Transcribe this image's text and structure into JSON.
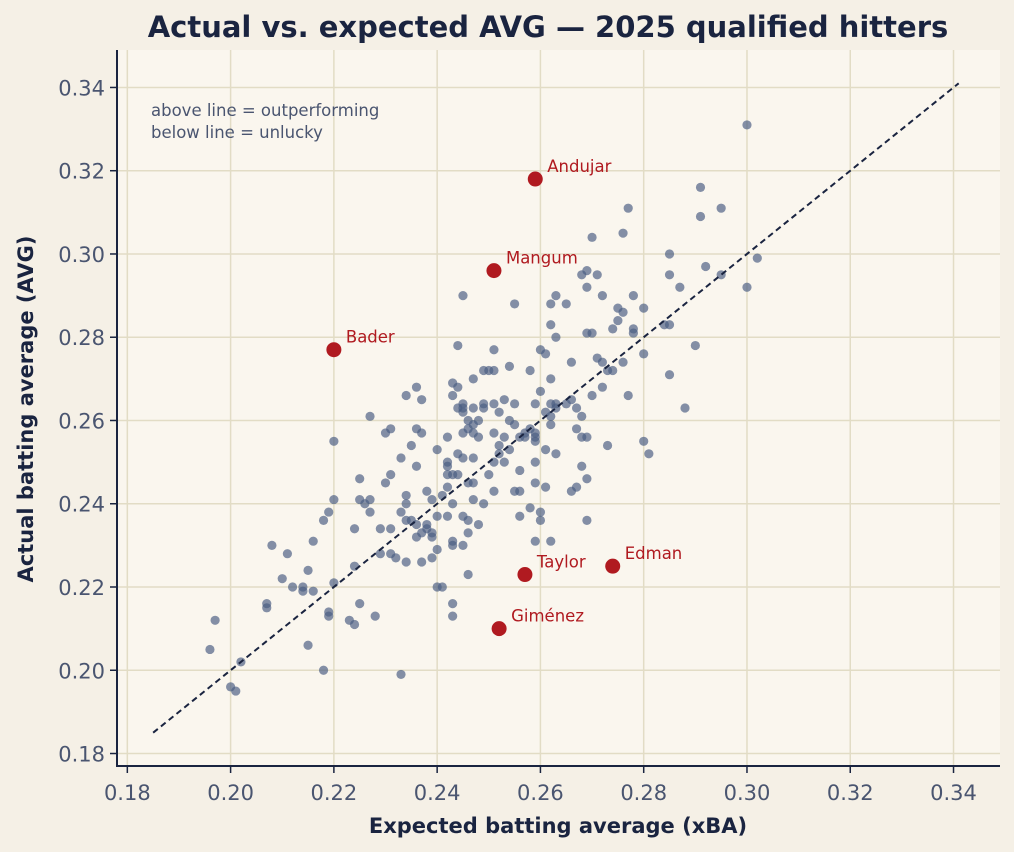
{
  "chart_data": {
    "type": "scatter",
    "title": "Actual vs. expected AVG — 2025 qualified hitters",
    "xlabel": "Expected batting average (xBA)",
    "ylabel": "Actual batting average (AVG)",
    "xlim": [
      0.178,
      0.349
    ],
    "ylim": [
      0.177,
      0.349
    ],
    "xticks": [
      "0.18",
      "0.20",
      "0.22",
      "0.24",
      "0.26",
      "0.28",
      "0.30",
      "0.32",
      "0.34"
    ],
    "yticks": [
      "0.18",
      "0.20",
      "0.22",
      "0.24",
      "0.26",
      "0.28",
      "0.30",
      "0.32",
      "0.34"
    ],
    "grid": true,
    "annotation": [
      "above line = outperforming",
      "below line = unlucky"
    ],
    "reference_line": {
      "style": "dashed",
      "x": [
        0.185,
        0.341
      ],
      "y": [
        0.185,
        0.341
      ]
    },
    "colors": {
      "points": "#4a5d82",
      "highlight": "#b01a20",
      "line": "#1a2440",
      "grid": "#e2dcc5",
      "plot_bg": "#faf6ee",
      "page_bg": "#f5f0e6"
    },
    "highlighted": [
      {
        "name": "Andujar",
        "x": 0.259,
        "y": 0.318
      },
      {
        "name": "Mangum",
        "x": 0.251,
        "y": 0.296
      },
      {
        "name": "Bader",
        "x": 0.22,
        "y": 0.277
      },
      {
        "name": "Taylor",
        "x": 0.257,
        "y": 0.223
      },
      {
        "name": "Edman",
        "x": 0.274,
        "y": 0.225
      },
      {
        "name": "Giménez",
        "x": 0.252,
        "y": 0.21
      }
    ],
    "points": [
      [
        0.196,
        0.205
      ],
      [
        0.197,
        0.212
      ],
      [
        0.2,
        0.196
      ],
      [
        0.201,
        0.195
      ],
      [
        0.202,
        0.202
      ],
      [
        0.207,
        0.215
      ],
      [
        0.207,
        0.216
      ],
      [
        0.208,
        0.23
      ],
      [
        0.21,
        0.222
      ],
      [
        0.211,
        0.228
      ],
      [
        0.212,
        0.22
      ],
      [
        0.214,
        0.22
      ],
      [
        0.214,
        0.219
      ],
      [
        0.215,
        0.224
      ],
      [
        0.215,
        0.206
      ],
      [
        0.216,
        0.219
      ],
      [
        0.216,
        0.231
      ],
      [
        0.218,
        0.236
      ],
      [
        0.218,
        0.2
      ],
      [
        0.219,
        0.238
      ],
      [
        0.219,
        0.214
      ],
      [
        0.219,
        0.213
      ],
      [
        0.22,
        0.241
      ],
      [
        0.22,
        0.221
      ],
      [
        0.22,
        0.255
      ],
      [
        0.223,
        0.212
      ],
      [
        0.224,
        0.211
      ],
      [
        0.224,
        0.234
      ],
      [
        0.224,
        0.225
      ],
      [
        0.225,
        0.246
      ],
      [
        0.225,
        0.241
      ],
      [
        0.225,
        0.216
      ],
      [
        0.226,
        0.24
      ],
      [
        0.227,
        0.261
      ],
      [
        0.227,
        0.241
      ],
      [
        0.227,
        0.238
      ],
      [
        0.228,
        0.213
      ],
      [
        0.229,
        0.234
      ],
      [
        0.229,
        0.228
      ],
      [
        0.23,
        0.245
      ],
      [
        0.23,
        0.257
      ],
      [
        0.231,
        0.258
      ],
      [
        0.231,
        0.247
      ],
      [
        0.231,
        0.234
      ],
      [
        0.231,
        0.228
      ],
      [
        0.232,
        0.227
      ],
      [
        0.233,
        0.251
      ],
      [
        0.233,
        0.238
      ],
      [
        0.233,
        0.199
      ],
      [
        0.234,
        0.266
      ],
      [
        0.234,
        0.242
      ],
      [
        0.234,
        0.24
      ],
      [
        0.234,
        0.236
      ],
      [
        0.234,
        0.226
      ],
      [
        0.235,
        0.254
      ],
      [
        0.235,
        0.236
      ],
      [
        0.236,
        0.268
      ],
      [
        0.236,
        0.258
      ],
      [
        0.236,
        0.249
      ],
      [
        0.236,
        0.235
      ],
      [
        0.236,
        0.232
      ],
      [
        0.237,
        0.265
      ],
      [
        0.237,
        0.257
      ],
      [
        0.237,
        0.233
      ],
      [
        0.237,
        0.226
      ],
      [
        0.238,
        0.243
      ],
      [
        0.238,
        0.235
      ],
      [
        0.238,
        0.234
      ],
      [
        0.239,
        0.241
      ],
      [
        0.239,
        0.233
      ],
      [
        0.239,
        0.227
      ],
      [
        0.239,
        0.232
      ],
      [
        0.24,
        0.253
      ],
      [
        0.24,
        0.237
      ],
      [
        0.24,
        0.229
      ],
      [
        0.24,
        0.22
      ],
      [
        0.241,
        0.242
      ],
      [
        0.241,
        0.22
      ],
      [
        0.242,
        0.256
      ],
      [
        0.242,
        0.25
      ],
      [
        0.242,
        0.249
      ],
      [
        0.242,
        0.247
      ],
      [
        0.242,
        0.244
      ],
      [
        0.242,
        0.237
      ],
      [
        0.243,
        0.269
      ],
      [
        0.243,
        0.266
      ],
      [
        0.243,
        0.247
      ],
      [
        0.243,
        0.24
      ],
      [
        0.243,
        0.231
      ],
      [
        0.243,
        0.23
      ],
      [
        0.243,
        0.216
      ],
      [
        0.243,
        0.213
      ],
      [
        0.244,
        0.278
      ],
      [
        0.244,
        0.268
      ],
      [
        0.244,
        0.263
      ],
      [
        0.244,
        0.252
      ],
      [
        0.244,
        0.247
      ],
      [
        0.245,
        0.29
      ],
      [
        0.245,
        0.264
      ],
      [
        0.245,
        0.263
      ],
      [
        0.245,
        0.262
      ],
      [
        0.245,
        0.257
      ],
      [
        0.245,
        0.251
      ],
      [
        0.245,
        0.237
      ],
      [
        0.245,
        0.23
      ],
      [
        0.246,
        0.26
      ],
      [
        0.246,
        0.258
      ],
      [
        0.246,
        0.245
      ],
      [
        0.246,
        0.236
      ],
      [
        0.246,
        0.233
      ],
      [
        0.246,
        0.223
      ],
      [
        0.247,
        0.27
      ],
      [
        0.247,
        0.263
      ],
      [
        0.247,
        0.259
      ],
      [
        0.247,
        0.257
      ],
      [
        0.247,
        0.251
      ],
      [
        0.247,
        0.245
      ],
      [
        0.247,
        0.241
      ],
      [
        0.248,
        0.26
      ],
      [
        0.248,
        0.256
      ],
      [
        0.248,
        0.235
      ],
      [
        0.249,
        0.272
      ],
      [
        0.249,
        0.264
      ],
      [
        0.249,
        0.263
      ],
      [
        0.249,
        0.24
      ],
      [
        0.25,
        0.272
      ],
      [
        0.25,
        0.247
      ],
      [
        0.251,
        0.277
      ],
      [
        0.251,
        0.272
      ],
      [
        0.251,
        0.264
      ],
      [
        0.251,
        0.257
      ],
      [
        0.251,
        0.25
      ],
      [
        0.251,
        0.243
      ],
      [
        0.252,
        0.262
      ],
      [
        0.252,
        0.254
      ],
      [
        0.252,
        0.252
      ],
      [
        0.253,
        0.265
      ],
      [
        0.253,
        0.256
      ],
      [
        0.253,
        0.25
      ],
      [
        0.254,
        0.273
      ],
      [
        0.254,
        0.26
      ],
      [
        0.254,
        0.253
      ],
      [
        0.255,
        0.288
      ],
      [
        0.255,
        0.264
      ],
      [
        0.255,
        0.259
      ],
      [
        0.255,
        0.243
      ],
      [
        0.256,
        0.256
      ],
      [
        0.256,
        0.248
      ],
      [
        0.256,
        0.243
      ],
      [
        0.256,
        0.237
      ],
      [
        0.257,
        0.257
      ],
      [
        0.257,
        0.256
      ],
      [
        0.258,
        0.272
      ],
      [
        0.258,
        0.258
      ],
      [
        0.258,
        0.239
      ],
      [
        0.259,
        0.264
      ],
      [
        0.259,
        0.257
      ],
      [
        0.259,
        0.256
      ],
      [
        0.259,
        0.255
      ],
      [
        0.259,
        0.25
      ],
      [
        0.259,
        0.245
      ],
      [
        0.259,
        0.231
      ],
      [
        0.26,
        0.277
      ],
      [
        0.26,
        0.267
      ],
      [
        0.26,
        0.238
      ],
      [
        0.26,
        0.236
      ],
      [
        0.261,
        0.276
      ],
      [
        0.261,
        0.262
      ],
      [
        0.261,
        0.253
      ],
      [
        0.261,
        0.244
      ],
      [
        0.262,
        0.288
      ],
      [
        0.262,
        0.283
      ],
      [
        0.262,
        0.27
      ],
      [
        0.262,
        0.264
      ],
      [
        0.262,
        0.261
      ],
      [
        0.262,
        0.259
      ],
      [
        0.262,
        0.231
      ],
      [
        0.263,
        0.29
      ],
      [
        0.263,
        0.28
      ],
      [
        0.263,
        0.264
      ],
      [
        0.263,
        0.263
      ],
      [
        0.263,
        0.252
      ],
      [
        0.265,
        0.288
      ],
      [
        0.265,
        0.264
      ],
      [
        0.266,
        0.274
      ],
      [
        0.266,
        0.265
      ],
      [
        0.266,
        0.243
      ],
      [
        0.267,
        0.263
      ],
      [
        0.267,
        0.258
      ],
      [
        0.267,
        0.244
      ],
      [
        0.268,
        0.295
      ],
      [
        0.268,
        0.261
      ],
      [
        0.268,
        0.256
      ],
      [
        0.268,
        0.249
      ],
      [
        0.269,
        0.296
      ],
      [
        0.269,
        0.292
      ],
      [
        0.269,
        0.281
      ],
      [
        0.269,
        0.256
      ],
      [
        0.269,
        0.246
      ],
      [
        0.269,
        0.236
      ],
      [
        0.27,
        0.304
      ],
      [
        0.27,
        0.281
      ],
      [
        0.27,
        0.266
      ],
      [
        0.271,
        0.295
      ],
      [
        0.271,
        0.275
      ],
      [
        0.272,
        0.29
      ],
      [
        0.272,
        0.274
      ],
      [
        0.272,
        0.268
      ],
      [
        0.273,
        0.272
      ],
      [
        0.273,
        0.254
      ],
      [
        0.274,
        0.282
      ],
      [
        0.274,
        0.272
      ],
      [
        0.275,
        0.287
      ],
      [
        0.275,
        0.284
      ],
      [
        0.276,
        0.305
      ],
      [
        0.276,
        0.286
      ],
      [
        0.276,
        0.274
      ],
      [
        0.277,
        0.311
      ],
      [
        0.277,
        0.266
      ],
      [
        0.278,
        0.29
      ],
      [
        0.278,
        0.282
      ],
      [
        0.278,
        0.281
      ],
      [
        0.28,
        0.287
      ],
      [
        0.28,
        0.276
      ],
      [
        0.28,
        0.255
      ],
      [
        0.281,
        0.252
      ],
      [
        0.284,
        0.283
      ],
      [
        0.285,
        0.3
      ],
      [
        0.285,
        0.295
      ],
      [
        0.285,
        0.283
      ],
      [
        0.285,
        0.271
      ],
      [
        0.287,
        0.292
      ],
      [
        0.288,
        0.263
      ],
      [
        0.29,
        0.278
      ],
      [
        0.291,
        0.316
      ],
      [
        0.291,
        0.309
      ],
      [
        0.292,
        0.297
      ],
      [
        0.295,
        0.311
      ],
      [
        0.295,
        0.295
      ],
      [
        0.3,
        0.331
      ],
      [
        0.3,
        0.292
      ],
      [
        0.302,
        0.299
      ]
    ]
  }
}
